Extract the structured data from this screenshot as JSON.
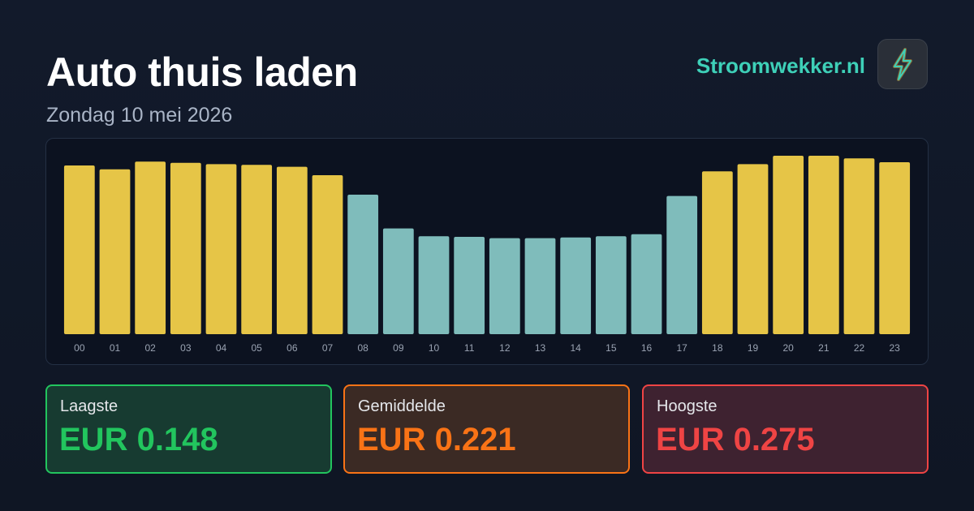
{
  "title": "Auto thuis laden",
  "subtitle": "Zondag 10 mei 2026",
  "brand": "Stroomwekker.nl",
  "chart_data": {
    "type": "bar",
    "categories": [
      "00",
      "01",
      "02",
      "03",
      "04",
      "05",
      "06",
      "07",
      "08",
      "09",
      "10",
      "11",
      "12",
      "13",
      "14",
      "15",
      "16",
      "17",
      "18",
      "19",
      "20",
      "21",
      "22",
      "23"
    ],
    "values": [
      0.26,
      0.254,
      0.266,
      0.264,
      0.262,
      0.261,
      0.258,
      0.245,
      0.215,
      0.163,
      0.151,
      0.15,
      0.148,
      0.148,
      0.149,
      0.151,
      0.154,
      0.213,
      0.251,
      0.262,
      0.275,
      0.275,
      0.271,
      0.265
    ],
    "colors": [
      "#e6c547",
      "#e6c547",
      "#e6c547",
      "#e6c547",
      "#e6c547",
      "#e6c547",
      "#e6c547",
      "#e6c547",
      "#7fbcbb",
      "#7fbcbb",
      "#7fbcbb",
      "#7fbcbb",
      "#7fbcbb",
      "#7fbcbb",
      "#7fbcbb",
      "#7fbcbb",
      "#7fbcbb",
      "#7fbcbb",
      "#e6c547",
      "#e6c547",
      "#e6c547",
      "#e6c547",
      "#e6c547",
      "#e6c547"
    ]
  },
  "stats": [
    {
      "label": "Laagste",
      "value": "EUR 0.148"
    },
    {
      "label": "Gemiddelde",
      "value": "EUR 0.221"
    },
    {
      "label": "Hoogste",
      "value": "EUR 0.275"
    }
  ]
}
